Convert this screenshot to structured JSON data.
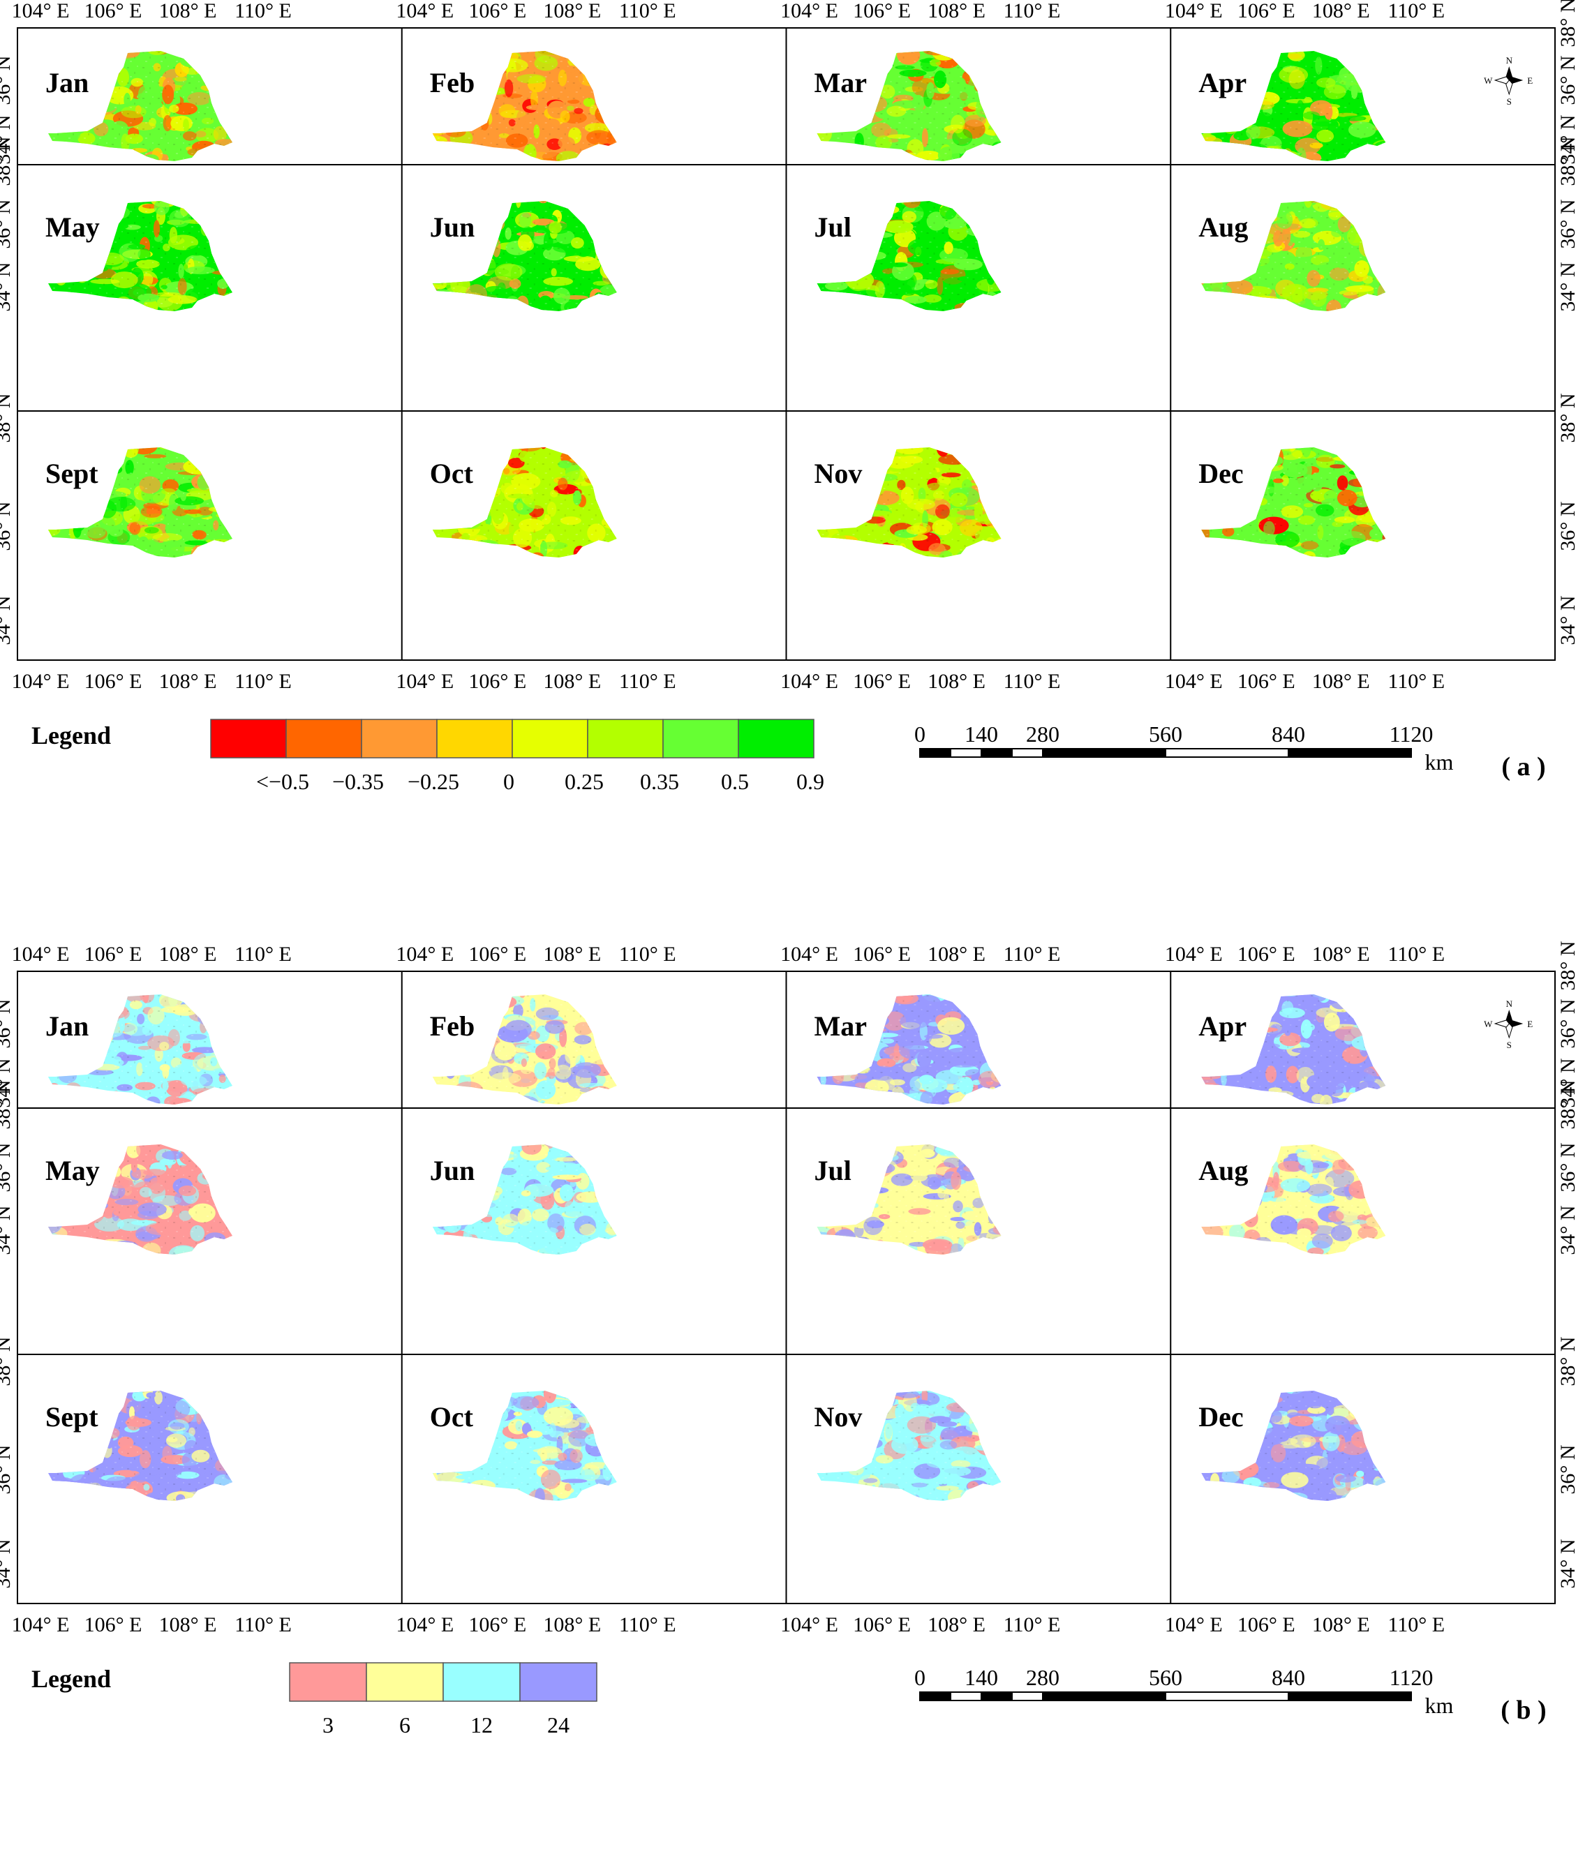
{
  "figure": {
    "months": [
      "Jan",
      "Feb",
      "Mar",
      "Apr",
      "May",
      "Jun",
      "Jul",
      "Aug",
      "Sept",
      "Oct",
      "Nov",
      "Dec"
    ],
    "lon_labels": [
      "104° E",
      "106° E",
      "108° E",
      "110° E"
    ],
    "lat_labels": [
      "34° N",
      "36° N",
      "38° N"
    ],
    "compass": {
      "n": "N",
      "s": "S",
      "e": "E",
      "w": "W"
    },
    "legend_title": "Legend",
    "scale_bar": {
      "values": [
        "0",
        "140",
        "280",
        "560",
        "840",
        "1120"
      ],
      "unit": "km"
    }
  },
  "panel_a": {
    "label": "( a )",
    "legend_colors": [
      "#ff0000",
      "#ff6600",
      "#ff9933",
      "#ffd700",
      "#e6ff00",
      "#b3ff00",
      "#66ff33",
      "#00ee00"
    ],
    "legend_ticks": [
      "<−0.5",
      "−0.35",
      "−0.25",
      "0",
      "0.25",
      "0.35",
      "0.5",
      "0.9"
    ]
  },
  "panel_b": {
    "label": "( b )",
    "legend_colors": [
      "#ff9999",
      "#ffff99",
      "#99ffff",
      "#9999ff"
    ],
    "legend_ticks": [
      "3",
      "6",
      "12",
      "24"
    ]
  }
}
